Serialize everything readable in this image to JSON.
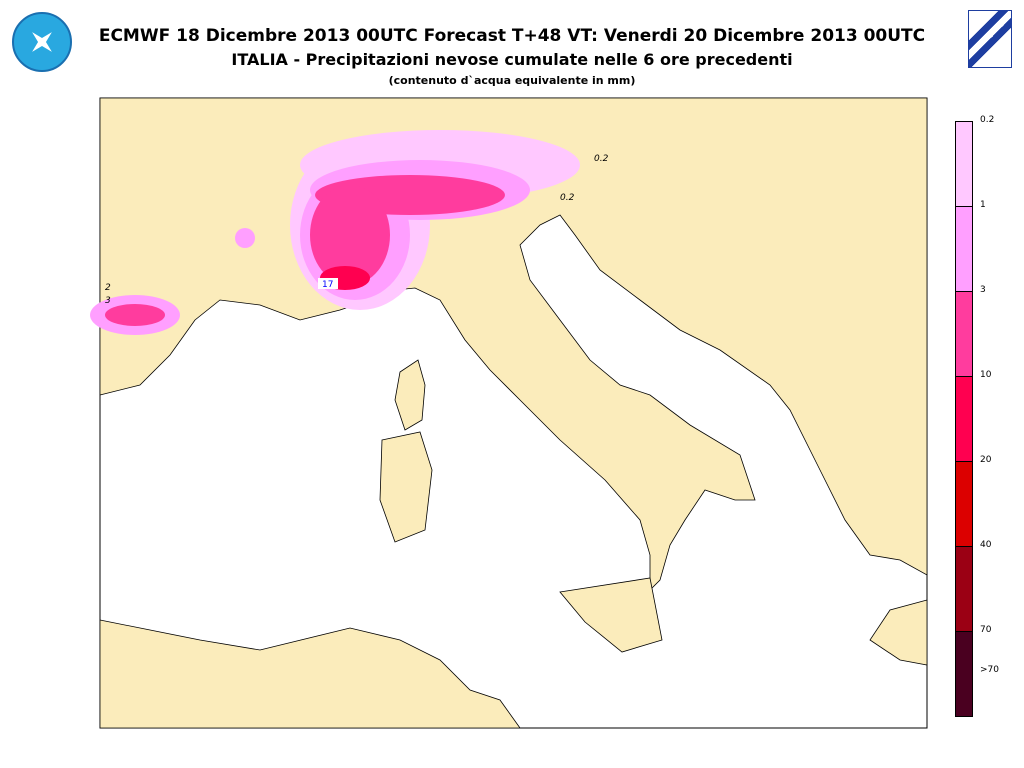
{
  "title": {
    "line1": "ECMWF 18 Dicembre 2013 00UTC Forecast T+48 VT: Venerdi 20 Dicembre 2013 00UTC",
    "line2": "ITALIA - Precipitazioni nevose cumulate nelle 6 ore precedenti",
    "line3": "(contenuto d`acqua equivalente in mm)"
  },
  "map": {
    "land_color": "#fbecbb",
    "sea_color": "#ffffff",
    "contour_labels": [
      "0.2",
      "0.2",
      "2",
      "3",
      "17"
    ]
  },
  "legend": {
    "labels": [
      "0.2",
      "1",
      "3",
      "10",
      "20",
      "40",
      "70",
      ">70"
    ],
    "colors": [
      "#ffc8ff",
      "#ff9fff",
      "#ff3c9e",
      "#ff0050",
      "#dc0000",
      "#9b0014",
      "#4a0020"
    ]
  },
  "logos": [
    "left-emblem-logo",
    "cnmca-logo"
  ]
}
